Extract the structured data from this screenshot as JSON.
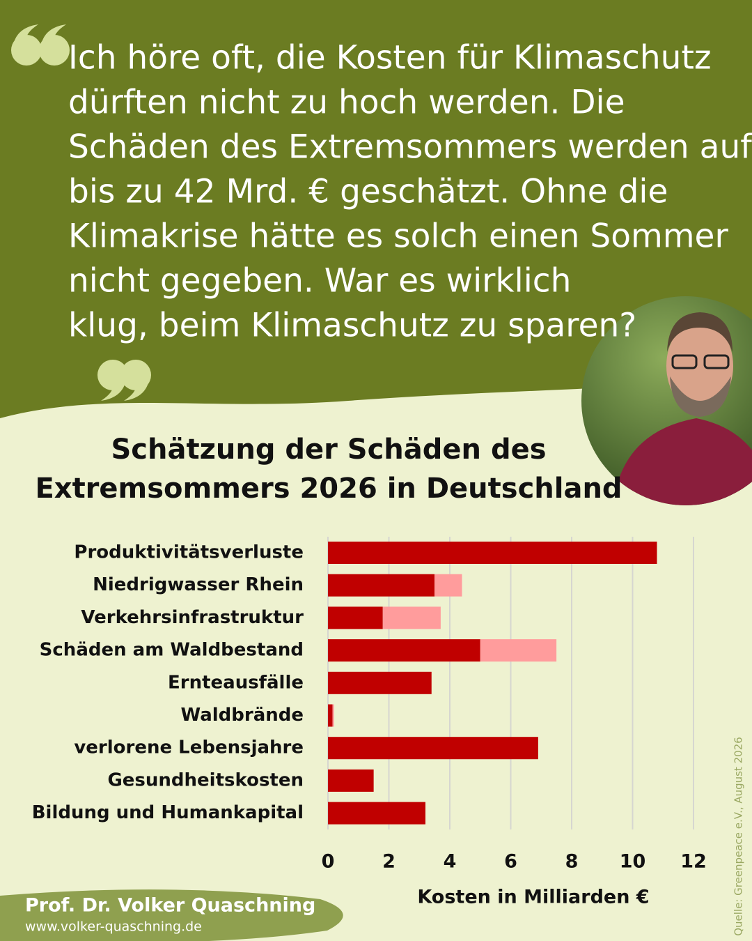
{
  "quote_lines": [
    "Ich höre oft, die Kosten für Klimaschutz",
    "dürften nicht zu hoch werden. Die",
    "Schäden des Extremsommers werden auf",
    "bis zu 42 Mrd. € geschätzt. Ohne die",
    "Klimakrise hätte es solch einen Sommer",
    "nicht gegeben. War es wirklich",
    "klug, beim Klimaschutz zu sparen?"
  ],
  "author": "Prof. Dr. Volker Quaschning",
  "website": "www.volker-quaschning.de",
  "source": "Quelle: Greenpeace e.V., August 2026",
  "chart_data": {
    "type": "stacked-bar-horizontal",
    "title_lines": [
      "Schätzung der Schäden des",
      "Extremsommers 2026 in Deutschland"
    ],
    "x_label": "Kosten in Milliarden €",
    "categories": [
      "Produktivitätsverluste",
      "Niedrigwasser Rhein",
      "Verkehrsinfrastruktur",
      "Schäden am Waldbestand",
      "Ernteausfälle",
      "Waldbrände",
      "verlorene Lebensjahre",
      "Gesundheitskosten",
      "Bildung und Humankapital"
    ],
    "series": [
      {
        "color": "#c00000",
        "values": [
          10.8,
          3.5,
          1.8,
          5.0,
          3.4,
          0.15,
          6.9,
          1.5,
          3.2
        ]
      },
      {
        "color": "#ff9c9c",
        "values": [
          0,
          0.9,
          1.9,
          2.5,
          0,
          0.05,
          0,
          0,
          0
        ]
      }
    ],
    "xlim": [
      0,
      12
    ],
    "xticks": [
      0,
      2,
      4,
      6,
      8,
      10,
      12
    ],
    "grid": true
  }
}
